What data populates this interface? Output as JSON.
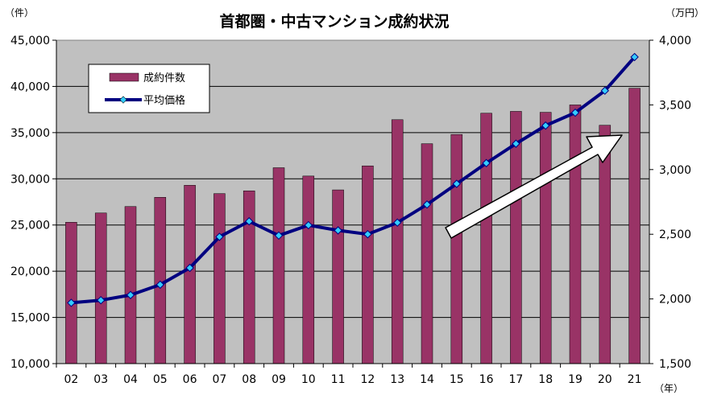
{
  "chart_data": {
    "type": "bar",
    "title": "首都圏・中古マンション成約状況",
    "categories": [
      "02",
      "03",
      "04",
      "05",
      "06",
      "07",
      "08",
      "09",
      "10",
      "11",
      "12",
      "13",
      "14",
      "15",
      "16",
      "17",
      "18",
      "19",
      "20",
      "21"
    ],
    "x_unit": "（年）",
    "left_axis": {
      "unit": "（件）",
      "ylim": [
        10000,
        45000
      ],
      "ticks": [
        "10,000",
        "15,000",
        "20,000",
        "25,000",
        "30,000",
        "35,000",
        "40,000",
        "45,000"
      ]
    },
    "right_axis": {
      "unit": "（万円）",
      "ylim": [
        1500,
        4000
      ],
      "ticks": [
        "1,500",
        "2,000",
        "2,500",
        "3,000",
        "3,500",
        "4,000"
      ]
    },
    "series": [
      {
        "name": "成約件数",
        "type": "bar",
        "axis": "left",
        "color": "#993366",
        "values": [
          25300,
          26300,
          27000,
          28000,
          29300,
          28400,
          28700,
          31200,
          30300,
          28800,
          31400,
          36400,
          33800,
          34800,
          37100,
          37300,
          37200,
          38000,
          35800,
          39800
        ]
      },
      {
        "name": "平均価格",
        "type": "line",
        "axis": "right",
        "color": "#000080",
        "marker_color": "#33CCFF",
        "values": [
          1970,
          1990,
          2030,
          2110,
          2240,
          2480,
          2600,
          2490,
          2570,
          2530,
          2500,
          2590,
          2730,
          2890,
          3050,
          3200,
          3340,
          3440,
          3610,
          3870
        ]
      }
    ],
    "plot_background": "#C0C0C0",
    "legend_position": "top-left",
    "grid": true,
    "annotation_arrow": "upward trend arrow"
  }
}
